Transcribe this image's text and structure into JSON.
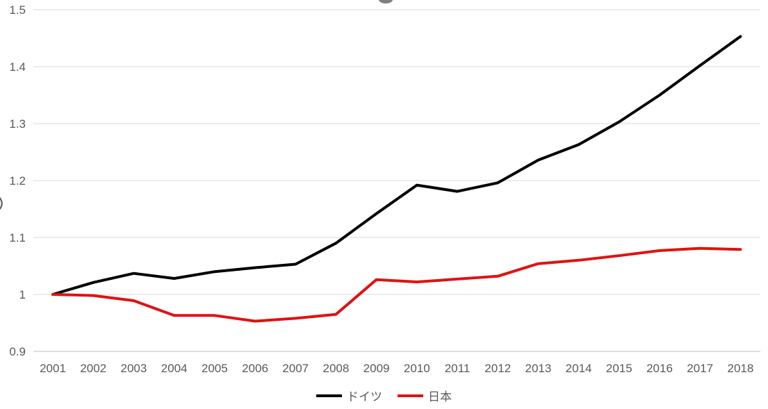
{
  "chart_data": {
    "type": "line",
    "categories": [
      "2001",
      "2002",
      "2003",
      "2004",
      "2005",
      "2006",
      "2007",
      "2008",
      "2009",
      "2010",
      "2011",
      "2012",
      "2013",
      "2014",
      "2015",
      "2016",
      "2017",
      "2018"
    ],
    "series": [
      {
        "name": "ドイツ",
        "color": "#000000",
        "values": [
          1.0,
          1.021,
          1.037,
          1.028,
          1.04,
          1.047,
          1.053,
          1.09,
          1.142,
          1.192,
          1.181,
          1.196,
          1.236,
          1.263,
          1.303,
          1.35,
          1.402,
          1.453
        ]
      },
      {
        "name": "日本",
        "color": "#e01212",
        "values": [
          1.0,
          0.998,
          0.989,
          0.963,
          0.963,
          0.953,
          0.958,
          0.965,
          1.026,
          1.022,
          1.027,
          1.032,
          1.054,
          1.06,
          1.068,
          1.077,
          1.081,
          1.079
        ]
      }
    ],
    "y_ticks": [
      {
        "label": "1.5",
        "value": 1.5
      },
      {
        "label": "1.4",
        "value": 1.4
      },
      {
        "label": "1.3",
        "value": 1.3
      },
      {
        "label": "1.2",
        "value": 1.2
      },
      {
        "label": "1.1",
        "value": 1.1
      },
      {
        "label": "1",
        "value": 1.0
      },
      {
        "label": "0.9",
        "value": 0.9
      }
    ],
    "ylim": [
      0.9,
      1.5
    ],
    "grid": true,
    "legend_position": "bottom",
    "colors": {
      "gridline": "#d9d9d9",
      "axis_line": "#bfbfbf",
      "tick_label": "#595959",
      "legend_text": "#595959",
      "title_fragment": "#7f7f7f",
      "axis_title_fragment": "#595959"
    }
  }
}
